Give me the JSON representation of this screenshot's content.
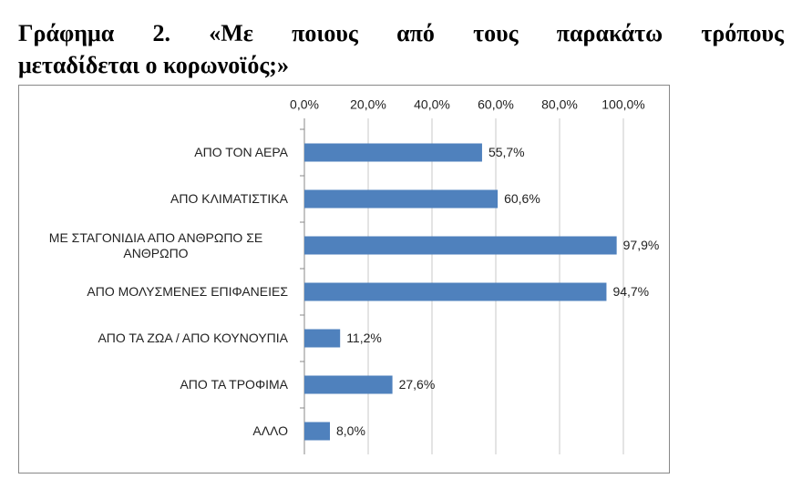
{
  "title_lines": [
    "Γράφημα 2. «Με ποιους από τους παρακάτω τρόπους",
    "μεταδίδεται ο κορωνοϊός;»"
  ],
  "chart_data": {
    "type": "bar",
    "orientation": "horizontal",
    "color": "#4f81bd",
    "grid": true,
    "categories": [
      "ΑΠΟ ΤΟΝ ΑΕΡΑ",
      "ΑΠΟ ΚΛΙΜΑΤΙΣΤΙΚΑ",
      "ΜΕ ΣΤΑΓΟΝΙΔΙΑ ΑΠΟ ΑΝΘΡΩΠΟ ΣΕ ΑΝΘΡΩΠΟ",
      "ΑΠΟ ΜΟΛΥΣΜΕΝΕΣ ΕΠΙΦΑΝΕΙΕΣ",
      "ΑΠΟ ΤΑ ΖΩΑ / ΑΠΟ ΚΟΥΝΟΥΠΙΑ",
      "ΑΠΟ ΤΑ ΤΡΟΦΙΜΑ",
      "ΑΛΛΟ"
    ],
    "values": [
      55.7,
      60.6,
      97.9,
      94.7,
      11.2,
      27.6,
      8.0
    ],
    "value_labels": [
      "55,7%",
      "60,6%",
      "97,9%",
      "94,7%",
      "11,2%",
      "27,6%",
      "8,0%"
    ],
    "xlim": [
      0,
      100
    ],
    "xticks": [
      {
        "value": 0,
        "label": "0,0%"
      },
      {
        "value": 20,
        "label": "20,0%"
      },
      {
        "value": 40,
        "label": "40,0%"
      },
      {
        "value": 60,
        "label": "60,0%"
      },
      {
        "value": 80,
        "label": "80,0%"
      },
      {
        "value": 100,
        "label": "100,0%"
      }
    ]
  }
}
